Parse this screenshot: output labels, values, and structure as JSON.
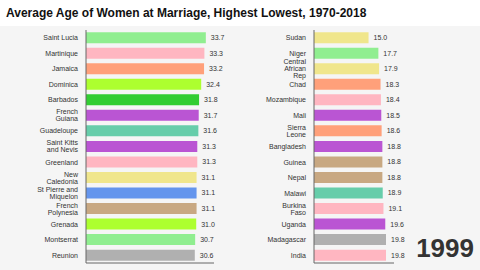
{
  "chart_data": [
    {
      "type": "bar",
      "title": "Average Age of Women at Marriage, Highest Lowest, 1970-2018",
      "orientation": "horizontal",
      "categories": [
        "Saint Lucia",
        "Martinique",
        "Jamaica",
        "Dominica",
        "Barbados",
        "French Guiana",
        "Guadeloupe",
        "Saint Kitts and Nevis",
        "Greenland",
        "New Caledonia",
        "St Pierre and Miquelon",
        "French Polynesia",
        "Grenada",
        "Montserrat",
        "Reunion"
      ],
      "values": [
        33.7,
        33.3,
        33.2,
        32.4,
        31.8,
        31.7,
        31.6,
        31.3,
        31.3,
        31.1,
        31.1,
        31.1,
        31.0,
        30.7,
        30.6
      ],
      "value_labels": [
        "33.7",
        "33.3",
        "33.2",
        "32.4",
        "31.8",
        "31.7",
        "31.6",
        "31.3",
        "31.3",
        "31.1",
        "31.1",
        "31.1",
        "31.0",
        "30.7",
        "30.6"
      ],
      "colors": [
        "#90EE90",
        "#FFB6C1",
        "#FFA07A",
        "#ADFF2F",
        "#32CD32",
        "#BA55D3",
        "#66CDAA",
        "#BA55D3",
        "#FFB6C1",
        "#F0E68C",
        "#6495ED",
        "#C8A882",
        "#ADFF2F",
        "#90EE90",
        "#B0B0B0"
      ],
      "xlim": [
        0,
        36
      ],
      "tick_labels": "y",
      "data_labels": true,
      "grid": false
    },
    {
      "type": "bar",
      "orientation": "horizontal",
      "categories": [
        "Sudan",
        "Niger",
        "Central African Rep",
        "Chad",
        "Mozambique",
        "Mali",
        "Sierra Leone",
        "Bangladesh",
        "Guinea",
        "Nepal",
        "Malawi",
        "Burkina Faso",
        "Uganda",
        "Madagascar",
        "India"
      ],
      "values": [
        15.0,
        17.7,
        17.9,
        18.3,
        18.4,
        18.5,
        18.6,
        18.8,
        18.8,
        18.8,
        18.9,
        19.1,
        19.6,
        19.8,
        19.8
      ],
      "value_labels": [
        "15.0",
        "17.7",
        "17.9",
        "18.3",
        "18.4",
        "18.5",
        "18.6",
        "18.8",
        "18.8",
        "18.8",
        "18.9",
        "19.1",
        "19.6",
        "19.8",
        "19.8"
      ],
      "colors": [
        "#F0E68C",
        "#90EE90",
        "#F0E68C",
        "#FFA07A",
        "#FFB6C1",
        "#BA55D3",
        "#FFA07A",
        "#BA55D3",
        "#C8A882",
        "#C8A882",
        "#66CDAA",
        "#FFB6C1",
        "#BA55D3",
        "#B0B0B0",
        "#FFB6C1"
      ],
      "xlim": [
        0,
        22
      ],
      "tick_labels": "y",
      "data_labels": true,
      "grid": false,
      "annotations": [
        "1999"
      ]
    }
  ]
}
